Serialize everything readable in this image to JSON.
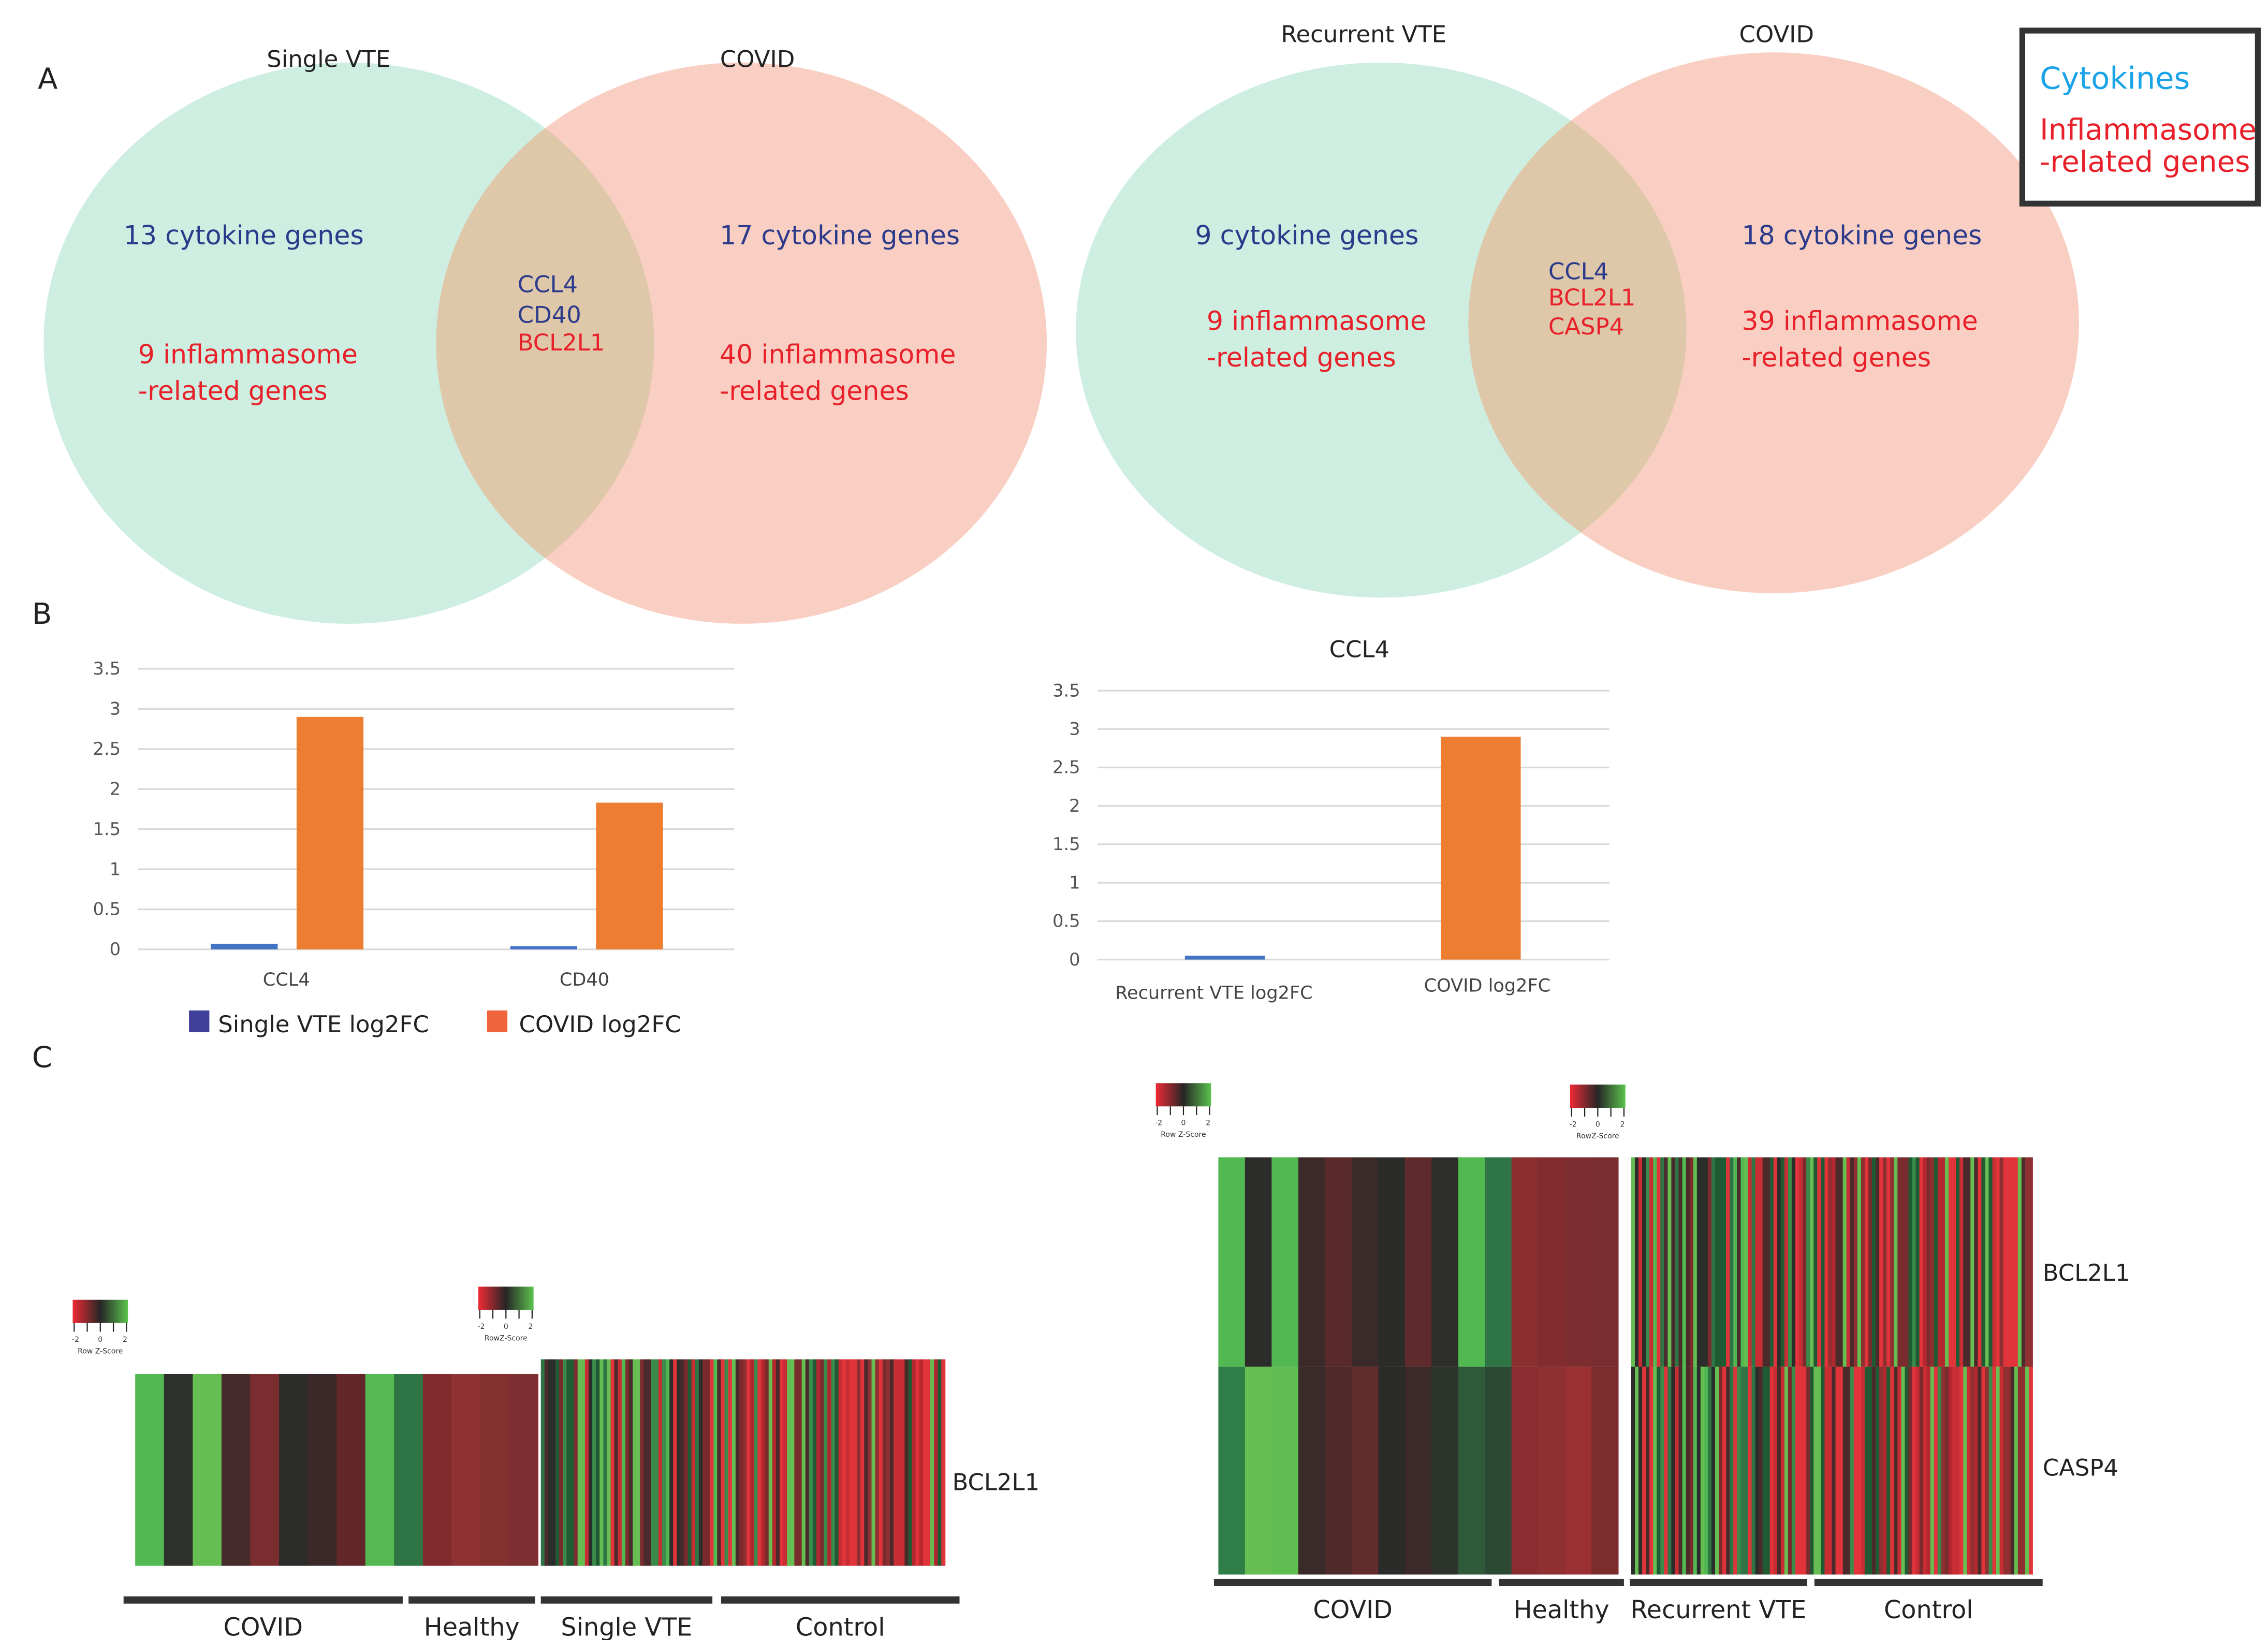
{
  "panels": {
    "a": "A",
    "b": "B",
    "c": "C"
  },
  "colors": {
    "cytokine": "#2b3a8a",
    "inflammasome": "#e8202a",
    "legend_cytokine": "#1aa3e8",
    "venn_green": "#cdeee0",
    "venn_pink": "#f9cfc3",
    "venn_overlap": "#dfc7aa",
    "bar_blue": "#4472c4",
    "bar_orange": "#ed7d31"
  },
  "venn_left": {
    "left_title": "Single VTE",
    "right_title": "COVID",
    "left_cytokine": "13 cytokine genes",
    "left_inflam_1": "9 inflammasome",
    "left_inflam_2": "-related genes",
    "overlap": [
      {
        "text": "CCL4",
        "type": "cytokine"
      },
      {
        "text": "CD40",
        "type": "cytokine"
      },
      {
        "text": "BCL2L1",
        "type": "inflammasome"
      }
    ],
    "right_cytokine": "17 cytokine genes",
    "right_inflam_1": "40 inflammasome",
    "right_inflam_2": "-related genes"
  },
  "venn_right": {
    "left_title": "Recurrent VTE",
    "right_title": "COVID",
    "left_cytokine": "9 cytokine genes",
    "left_inflam_1": "9 inflammasome",
    "left_inflam_2": "-related genes",
    "overlap": [
      {
        "text": "CCL4",
        "type": "cytokine"
      },
      {
        "text": "BCL2L1",
        "type": "inflammasome"
      },
      {
        "text": "CASP4",
        "type": "inflammasome"
      }
    ],
    "right_cytokine": "18 cytokine genes",
    "right_inflam_1": "39 inflammasome",
    "right_inflam_2": "-related genes"
  },
  "legend_box": {
    "cytokines": "Cytokines",
    "inflam_1": "Inflammasome",
    "inflam_2": "-related genes"
  },
  "chart_data": [
    {
      "type": "bar",
      "title": "",
      "xlabel": "",
      "ylabel": "",
      "ylim": [
        0,
        3.5
      ],
      "yticks": [
        "0",
        "0.5",
        "1",
        "1.5",
        "2",
        "2.5",
        "3",
        "3.5"
      ],
      "categories": [
        "CCL4",
        "CD40"
      ],
      "series": [
        {
          "name": "Single VTE log2FC",
          "values": [
            0.07,
            0.04
          ]
        },
        {
          "name": "COVID log2FC",
          "values": [
            2.9,
            1.83
          ]
        }
      ],
      "legend": "bottom",
      "grid": true
    },
    {
      "type": "bar",
      "title": "CCL4",
      "xlabel": "",
      "ylabel": "",
      "ylim": [
        0,
        3.5
      ],
      "yticks": [
        "0",
        "0.5",
        "1",
        "1.5",
        "2",
        "2.5",
        "3",
        "3.5"
      ],
      "categories": [
        "Recurrent VTE log2FC",
        "COVID log2FC"
      ],
      "values": [
        0.05,
        2.9
      ],
      "grid": true
    }
  ],
  "heatmap_legend": {
    "ticks": [
      "-2",
      "0",
      "2"
    ],
    "title": "Row Z-Score",
    "title_alt": "RowZ-Score"
  },
  "heatmap_left": {
    "genes": [
      "BCL2L1"
    ],
    "groups": [
      "COVID",
      "Healthy",
      "Single VTE",
      "Control"
    ],
    "coarse_columns": [
      [
        "#52b852",
        "#2e302b",
        "#66bd52",
        "#472a2b",
        "#7b2c2e",
        "#2c2d2a",
        "#3b2929",
        "#632729",
        "#54b953",
        "#2f7444",
        "#812b2e",
        "#8e3234",
        "#84302f",
        "#7f2f31"
      ]
    ]
  },
  "heatmap_right": {
    "genes": [
      "BCL2L1",
      "CASP4"
    ],
    "groups": [
      "COVID",
      "Healthy",
      "Recurrent VTE",
      "Control"
    ],
    "coarse_columns": [
      [
        "#52b852",
        "#2c2d2a",
        "#52b852",
        "#3c2a2a",
        "#5a2a2b",
        "#3b2a2a",
        "#2b2b2a",
        "#5e2a2b",
        "#2d2d2a",
        "#52b852",
        "#2f7444",
        "#8a2e30",
        "#822c2f",
        "#7d2d2f",
        "#7a2d2f"
      ],
      [
        "#2f7e48",
        "#66bd52",
        "#5fbd52",
        "#3a2a2a",
        "#4e2a2b",
        "#622b2c",
        "#2b2b2a",
        "#3c2a2a",
        "#2d342c",
        "#2f5a3a",
        "#2c4a33",
        "#8a2d30",
        "#8e2f31",
        "#9b3033",
        "#7d2c2e"
      ]
    ]
  }
}
